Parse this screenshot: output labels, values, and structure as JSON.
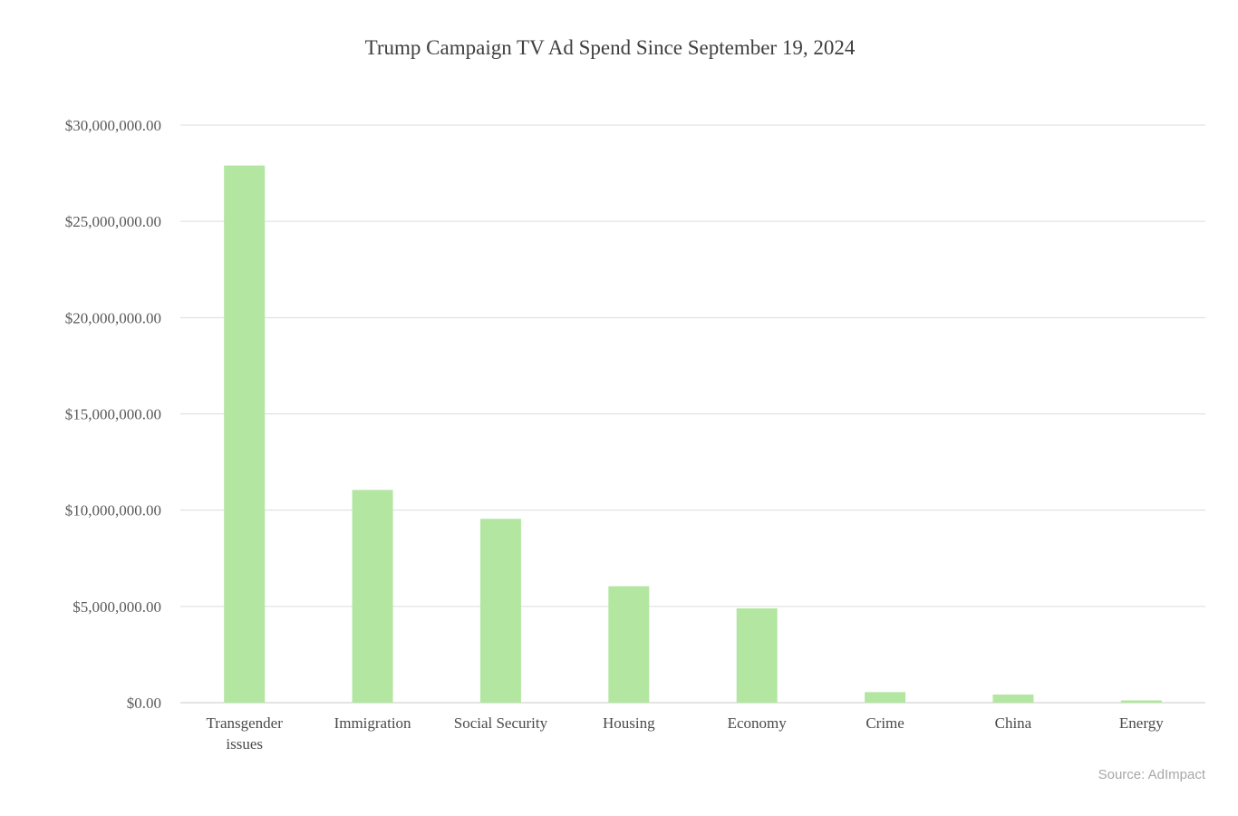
{
  "chart_data": {
    "type": "bar",
    "title": "Trump Campaign TV Ad Spend Since September 19, 2024",
    "xlabel": "",
    "ylabel": "",
    "categories": [
      "Transgender issues",
      "Immigration",
      "Social Security",
      "Housing",
      "Economy",
      "Crime",
      "China",
      "Energy"
    ],
    "values": [
      27900000,
      11050000,
      9550000,
      6050000,
      4900000,
      550000,
      420000,
      120000
    ],
    "ylim": [
      0,
      30000000
    ],
    "yticks": [
      0,
      5000000,
      10000000,
      15000000,
      20000000,
      25000000,
      30000000
    ],
    "ytick_labels": [
      "$0.00",
      "$5,000,000.00",
      "$10,000,000.00",
      "$15,000,000.00",
      "$20,000,000.00",
      "$25,000,000.00",
      "$30,000,000.00"
    ],
    "grid": true,
    "legend": "none",
    "bar_color": "#b3e6a1",
    "source": "Source: AdImpact"
  }
}
